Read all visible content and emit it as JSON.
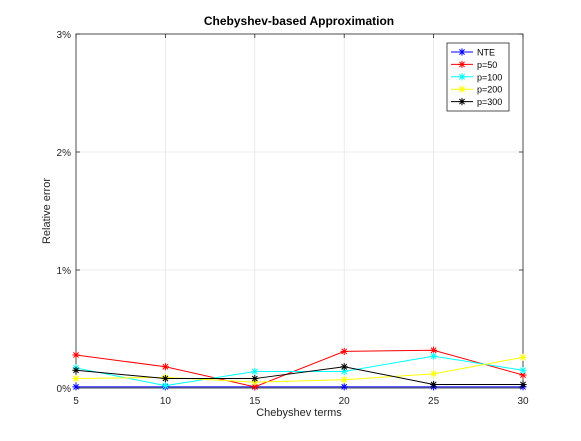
{
  "chart_data": {
    "type": "line",
    "title": "Chebyshev-based Approximation",
    "xlabel": "Chebyshev terms",
    "ylabel": "Relative error",
    "x": [
      5,
      10,
      15,
      20,
      25,
      30
    ],
    "xlim": [
      5,
      30
    ],
    "ylim": [
      0,
      3
    ],
    "xticks": [
      "5",
      "10",
      "15",
      "20",
      "25",
      "30"
    ],
    "yticks": [
      {
        "value": 0,
        "label": "0%"
      },
      {
        "value": 1,
        "label": "1%"
      },
      {
        "value": 2,
        "label": "2%"
      },
      {
        "value": 3,
        "label": "3%"
      }
    ],
    "grid": true,
    "legend_position": "top-right",
    "marker": "asterisk",
    "series": [
      {
        "name": "NTE",
        "color": "#0000ff",
        "values": [
          0.01,
          0.01,
          0.01,
          0.01,
          0.01,
          0.01
        ]
      },
      {
        "name": "p=50",
        "color": "#ff0000",
        "values": [
          0.28,
          0.18,
          0.01,
          0.31,
          0.32,
          0.11
        ]
      },
      {
        "name": "p=100",
        "color": "#00ffff",
        "values": [
          0.17,
          0.02,
          0.14,
          0.14,
          0.27,
          0.15
        ]
      },
      {
        "name": "p=200",
        "color": "#ffff00",
        "values": [
          0.08,
          0.09,
          0.05,
          0.07,
          0.12,
          0.26
        ]
      },
      {
        "name": "p=300",
        "color": "#000000",
        "values": [
          0.15,
          0.08,
          0.08,
          0.18,
          0.03,
          0.03
        ]
      }
    ]
  }
}
